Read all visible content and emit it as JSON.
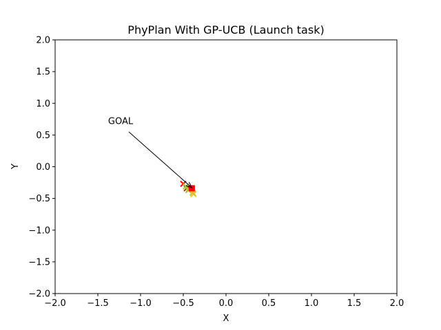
{
  "chart_data": {
    "type": "scatter",
    "title": "PhyPlan With GP-UCB (Launch task)",
    "xlabel": "X",
    "ylabel": "Y",
    "xlim": [
      -2.0,
      2.0
    ],
    "ylim": [
      -2.0,
      2.0
    ],
    "xticks": [
      -2.0,
      -1.5,
      -1.0,
      -0.5,
      0.0,
      0.5,
      1.0,
      1.5,
      2.0
    ],
    "yticks": [
      -2.0,
      -1.5,
      -1.0,
      -0.5,
      0.0,
      0.5,
      1.0,
      1.5,
      2.0
    ],
    "xtick_labels": [
      "−2.0",
      "−1.5",
      "−1.0",
      "−0.5",
      "0.0",
      "0.5",
      "1.0",
      "1.5",
      "2.0"
    ],
    "ytick_labels": [
      "−2.0",
      "−1.5",
      "−1.0",
      "−0.5",
      "0.0",
      "0.5",
      "1.0",
      "1.5",
      "2.0"
    ],
    "grid": false,
    "goal": {
      "x": -0.4,
      "y": -0.34,
      "color": "#ff0000",
      "marker": "square"
    },
    "attempts": [
      {
        "x": -0.5,
        "y": -0.27,
        "color": "#ff0000",
        "marker": "x"
      },
      {
        "x": -0.46,
        "y": -0.34,
        "color": "#cc2222",
        "marker": "x"
      },
      {
        "x": -0.43,
        "y": -0.35,
        "color": "#ff0000",
        "marker": "x"
      },
      {
        "x": -0.47,
        "y": -0.31,
        "color": "#9acd32",
        "marker": "x"
      },
      {
        "x": -0.44,
        "y": -0.37,
        "color": "#9acd32",
        "marker": "x"
      },
      {
        "x": -0.38,
        "y": -0.43,
        "color": "#e6c619",
        "marker": "x"
      },
      {
        "x": -0.39,
        "y": -0.41,
        "color": "#d4c021",
        "marker": "x"
      }
    ],
    "annotation": {
      "text": "GOAL",
      "text_x": -1.38,
      "text_y": 0.67,
      "point_x": -0.4,
      "point_y": -0.33
    }
  }
}
